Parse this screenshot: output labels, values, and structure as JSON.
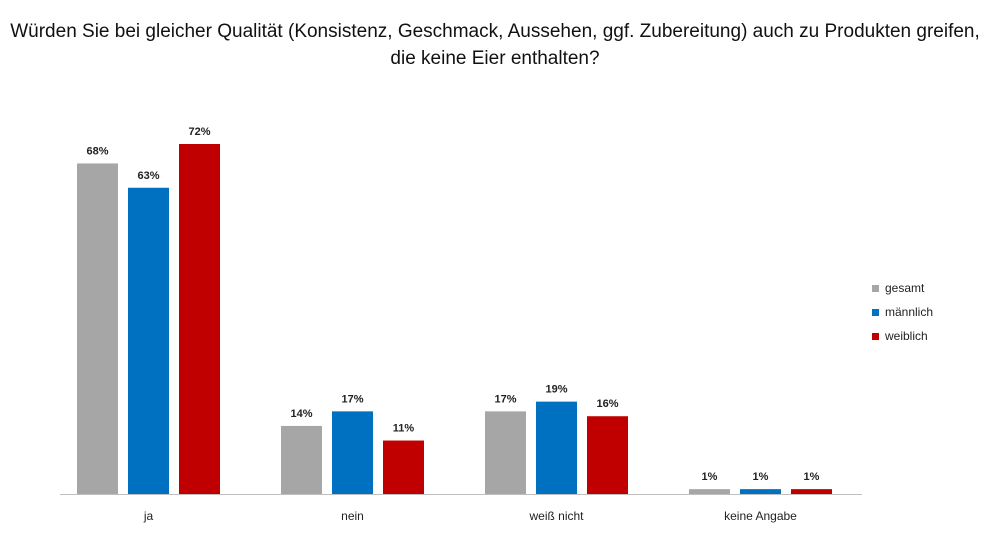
{
  "title": "Würden Sie bei gleicher Qualität (Konsistenz, Geschmack, Aussehen, ggf. Zubereitung) auch zu Produkten greifen, die keine Eier enthalten?",
  "chart_data": {
    "type": "bar",
    "title": "Würden Sie bei gleicher Qualität (Konsistenz, Geschmack, Aussehen, ggf. Zubereitung) auch zu Produkten greifen, die keine Eier enthalten?",
    "categories": [
      "ja",
      "nein",
      "weiß nicht",
      "keine Angabe"
    ],
    "series": [
      {
        "name": "gesamt",
        "values": [
          68,
          14,
          17,
          1
        ],
        "labels": [
          "68%",
          "14%",
          "17%",
          "1%"
        ],
        "color": "#a6a6a6"
      },
      {
        "name": "männlich",
        "values": [
          63,
          17,
          19,
          1
        ],
        "labels": [
          "63%",
          "17%",
          "19%",
          "1%"
        ],
        "color": "#0070c0"
      },
      {
        "name": "weiblich",
        "values": [
          72,
          11,
          16,
          1
        ],
        "labels": [
          "72%",
          "11%",
          "16%",
          "1%"
        ],
        "color": "#c00000"
      }
    ],
    "xlabel": "",
    "ylabel": "",
    "ylim": [
      0,
      72
    ],
    "grid": false,
    "legend": "right"
  }
}
